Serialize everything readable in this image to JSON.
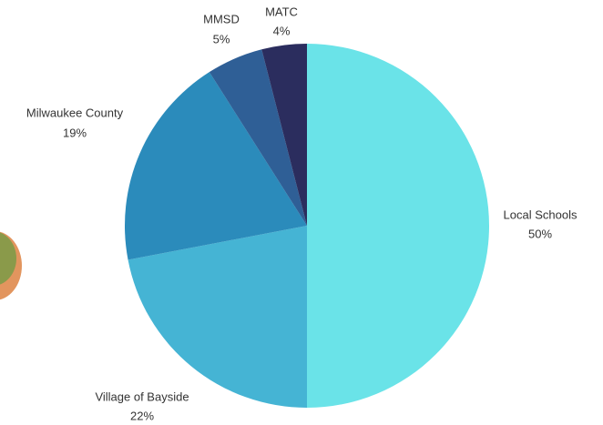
{
  "chart_data": {
    "type": "pie",
    "categories": [
      "Local Schools",
      "Village of Bayside",
      "Milwaukee County",
      "MMSD",
      "MATC"
    ],
    "values": [
      50,
      22,
      19,
      5,
      4
    ],
    "value_labels": [
      "50%",
      "22%",
      "19%",
      "5%",
      "4%"
    ],
    "colors": [
      "#6ae3e8",
      "#45b4d4",
      "#2b8bbb",
      "#2f5f96",
      "#2b2d5e"
    ]
  }
}
